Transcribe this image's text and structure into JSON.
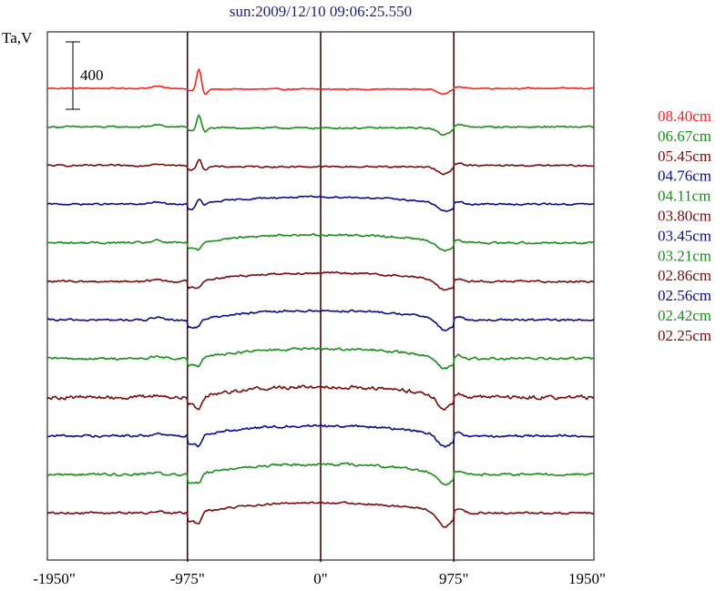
{
  "chart_data": {
    "type": "line",
    "title": "sun:2009/12/10 09:06:25.550",
    "ylabel": "Ta,V",
    "scale_bar_label": "400",
    "scale_bar_value": 400,
    "xlim": [
      -2000,
      2000
    ],
    "x_ticks": [
      {
        "value": -1950,
        "label": "-1950\""
      },
      {
        "value": -975,
        "label": "-975\""
      },
      {
        "value": 0,
        "label": "0\""
      },
      {
        "value": 975,
        "label": "975\""
      },
      {
        "value": 1950,
        "label": "1950\""
      }
    ],
    "vertical_markers": [
      -975,
      0,
      975
    ],
    "series": [
      {
        "name": "08.40cm",
        "color": "#ff2020",
        "offset": 0,
        "profile": "flat",
        "amp": 25,
        "limbdip": 25,
        "spike": 130,
        "noise": 3
      },
      {
        "name": "06.67cm",
        "color": "#1a8c1a",
        "offset": -1,
        "profile": "flat",
        "amp": 30,
        "limbdip": 40,
        "spike": 90,
        "noise": 4
      },
      {
        "name": "05.45cm",
        "color": "#7a0a0a",
        "offset": -2,
        "profile": "flat",
        "amp": 35,
        "limbdip": 45,
        "spike": 60,
        "noise": 4
      },
      {
        "name": "04.76cm",
        "color": "#0a0a8a",
        "offset": -3,
        "profile": "dome",
        "amp": 85,
        "limbdip": 40,
        "spike": 40,
        "noise": 4
      },
      {
        "name": "04.11cm",
        "color": "#1a8c1a",
        "offset": -4,
        "profile": "dome",
        "amp": 95,
        "limbdip": 45,
        "spike": -25,
        "noise": 5
      },
      {
        "name": "03.80cm",
        "color": "#7a0a0a",
        "offset": -5,
        "profile": "dome",
        "amp": 100,
        "limbdip": 50,
        "spike": -20,
        "noise": 5
      },
      {
        "name": "03.45cm",
        "color": "#0a0a8a",
        "offset": -6,
        "profile": "dome",
        "amp": 110,
        "limbdip": 60,
        "spike": -20,
        "noise": 5
      },
      {
        "name": "03.21cm",
        "color": "#1a8c1a",
        "offset": -7,
        "profile": "dome",
        "amp": 115,
        "limbdip": 55,
        "spike": -30,
        "noise": 6
      },
      {
        "name": "02.86cm",
        "color": "#7a0a0a",
        "offset": -8,
        "profile": "dome",
        "amp": 125,
        "limbdip": 65,
        "spike": -55,
        "noise": 9
      },
      {
        "name": "02.56cm",
        "color": "#0a0a8a",
        "offset": -9,
        "profile": "dome",
        "amp": 120,
        "limbdip": 60,
        "spike": -40,
        "noise": 6
      },
      {
        "name": "02.42cm",
        "color": "#1a8c1a",
        "offset": -10,
        "profile": "dome",
        "amp": 120,
        "limbdip": 60,
        "spike": -35,
        "noise": 6
      },
      {
        "name": "02.25cm",
        "color": "#7a0a0a",
        "offset": -11,
        "profile": "dome",
        "amp": 120,
        "limbdip": 75,
        "spike": -45,
        "noise": 5
      }
    ],
    "grid": false,
    "legend_position": "right"
  }
}
